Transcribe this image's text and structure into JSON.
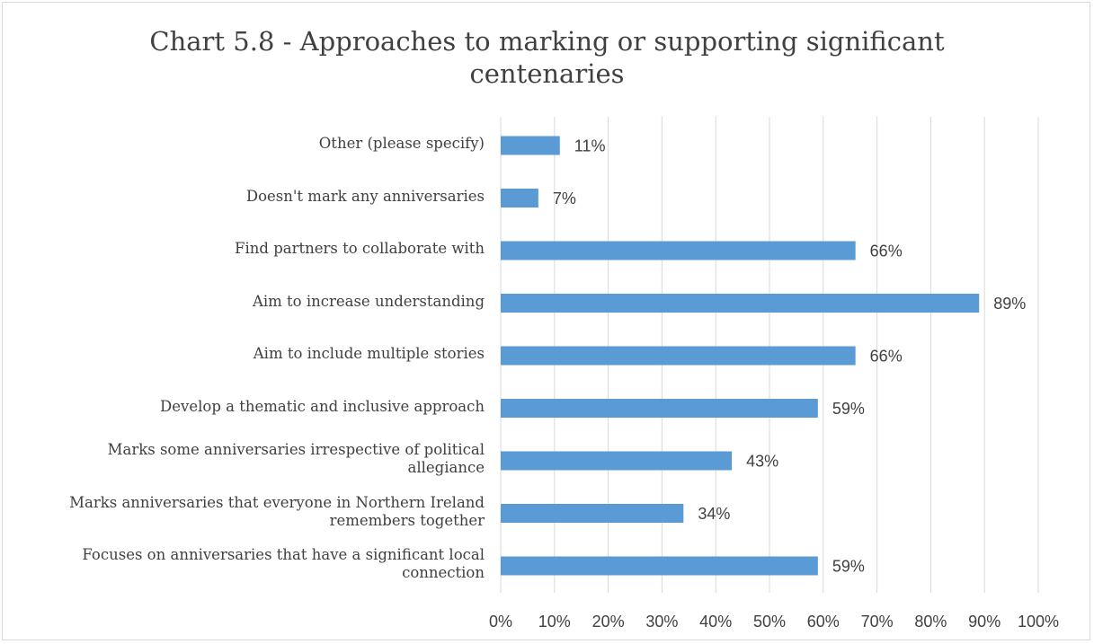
{
  "chart_data": {
    "type": "bar",
    "orientation": "horizontal",
    "title": "Chart 5.8 - Approaches to marking or supporting significant\ncentenaries",
    "categories": [
      "Other (please specify)",
      "Doesn't mark any anniversaries",
      "Find partners to collaborate with",
      "Aim to increase understanding",
      "Aim to include multiple stories",
      "Develop a thematic and inclusive approach",
      "Marks some anniversaries irrespective of political\nallegiance",
      "Marks anniversaries that everyone in Northern Ireland\nremembers together",
      "Focuses on anniversaries that have a significant local\nconnection"
    ],
    "values": [
      11,
      7,
      66,
      89,
      66,
      59,
      43,
      34,
      59
    ],
    "data_labels": [
      "11%",
      "7%",
      "66%",
      "89%",
      "66%",
      "59%",
      "43%",
      "34%",
      "59%"
    ],
    "xlim": [
      0,
      100
    ],
    "x_ticks": [
      0,
      10,
      20,
      30,
      40,
      50,
      60,
      70,
      80,
      90,
      100
    ],
    "x_tick_labels": [
      "0%",
      "10%",
      "20%",
      "30%",
      "40%",
      "50%",
      "60%",
      "70%",
      "80%",
      "90%",
      "100%"
    ],
    "xlabel": "",
    "ylabel": "",
    "grid": true,
    "legend": "none",
    "bar_color": "#5b9bd5",
    "gridline_color": "#d9d9d9",
    "text_color": "#404040"
  }
}
